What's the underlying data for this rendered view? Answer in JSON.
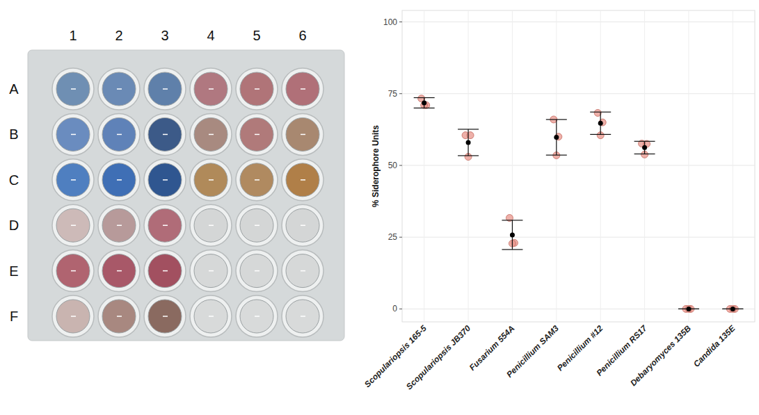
{
  "chart_data": {
    "type": "scatter",
    "y_label": "% Siderophore Units",
    "categories": [
      "Scopulariopsis 165-5",
      "Scopulariopsis JB370",
      "Fusarium 554A",
      "Penicillium SAM3",
      "Penicillium #12",
      "Penicillium RS17",
      "Debaryomyces 135B",
      "Candida 135E"
    ],
    "values": [
      71.8,
      58,
      25.8,
      59.8,
      64.7,
      56.2,
      0,
      0
    ],
    "errors": [
      1.8,
      4.6,
      5.1,
      6.2,
      3.9,
      2.2,
      0,
      0
    ],
    "replicates": [
      [
        73.3,
        71,
        71
      ],
      [
        60.5,
        60.5,
        53
      ],
      [
        31.7,
        23,
        22.8
      ],
      [
        66,
        60,
        53.5
      ],
      [
        68.3,
        65,
        60.5
      ],
      [
        57.6,
        57.5,
        53.8
      ],
      [
        0,
        0,
        0
      ],
      [
        0,
        0,
        0
      ]
    ],
    "color": "#e8968c",
    "ylim": [
      -4.5,
      104
    ],
    "yticks": [
      0,
      25,
      50,
      75,
      100
    ],
    "grid": true
  },
  "plate": {
    "columns": [
      "1",
      "2",
      "3",
      "4",
      "5",
      "6"
    ],
    "rows": [
      "A",
      "B",
      "C",
      "D",
      "E",
      "F"
    ],
    "well_colors": [
      [
        "#6f8fb3",
        "#6a8ab5",
        "#5f80aa",
        "#b07880",
        "#b07478",
        "#b07078"
      ],
      [
        "#6a8cbf",
        "#5f82b8",
        "#3c5a88",
        "#a88a80",
        "#b07a7a",
        "#a88870"
      ],
      [
        "#4f7fc0",
        "#3f6fb5",
        "#2f5690",
        "#b08a5a",
        "#b08a60",
        "#b07f48"
      ],
      [
        "#cdbab8",
        "#b79a9a",
        "#b06c78",
        "#d4d6d6",
        "#d4d6d6",
        "#d4d6d6"
      ],
      [
        "#b06470",
        "#a85868",
        "#a25060",
        "#d6d8d8",
        "#d6d8d8",
        "#d6d8d8"
      ],
      [
        "#c9b4b0",
        "#a88880",
        "#8a6a60",
        "#d8dada",
        "#d8dada",
        "#d8dada"
      ]
    ]
  }
}
